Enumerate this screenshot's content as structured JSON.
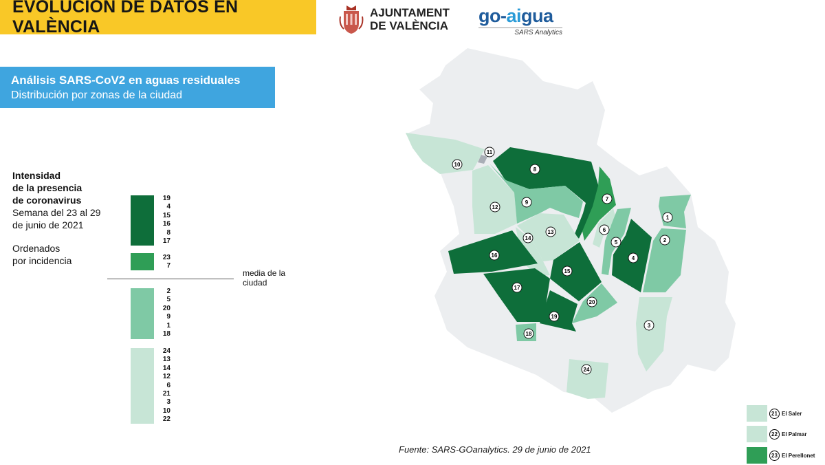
{
  "header": {
    "title": "EVOLUCIÓN DE DATOS EN VALÈNCIA",
    "ajuntament": {
      "line1": "AJUNTAMENT",
      "line2": "DE VALÈNCIA"
    },
    "goaigua": {
      "brand_a": "go-",
      "brand_b": "ai",
      "brand_c": "gua",
      "sub": "SARS Analytics"
    }
  },
  "info_box": {
    "line1": "Análisis SARS-CoV2 en aguas residuales",
    "line2": "Distribución por zonas de la ciudad"
  },
  "legend": {
    "title_lines": [
      "Intensidad",
      "de la presencia",
      "de coronavirus"
    ],
    "week_lines": [
      "Semana del 23 al 29",
      "de junio de 2021"
    ],
    "order_lines": [
      "Ordenados",
      "por incidencia"
    ],
    "mean_label_lines": [
      "media de la",
      "ciudad"
    ],
    "bands": [
      {
        "level": "very-high",
        "color": "#0e6e3a",
        "zones": [
          "19",
          "4",
          "15",
          "16",
          "8",
          "17"
        ]
      },
      {
        "level": "high",
        "color": "#2f9e56",
        "zones": [
          "23",
          "7"
        ]
      },
      {
        "level": "medium",
        "color": "#7fc9a5",
        "zones": [
          "2",
          "5",
          "20",
          "9",
          "1",
          "18"
        ]
      },
      {
        "level": "low",
        "color": "#c7e5d6",
        "zones": [
          "24",
          "13",
          "14",
          "12",
          "6",
          "21",
          "3",
          "10",
          "22"
        ]
      }
    ]
  },
  "zones": [
    {
      "id": "1",
      "level": "medium"
    },
    {
      "id": "2",
      "level": "medium"
    },
    {
      "id": "3",
      "level": "low"
    },
    {
      "id": "4",
      "level": "very-high"
    },
    {
      "id": "5",
      "level": "medium"
    },
    {
      "id": "6",
      "level": "low"
    },
    {
      "id": "7",
      "level": "high"
    },
    {
      "id": "8",
      "level": "very-high"
    },
    {
      "id": "9",
      "level": "medium"
    },
    {
      "id": "10",
      "level": "low"
    },
    {
      "id": "11",
      "level": "no-data"
    },
    {
      "id": "12",
      "level": "low"
    },
    {
      "id": "13",
      "level": "low"
    },
    {
      "id": "14",
      "level": "low"
    },
    {
      "id": "15",
      "level": "very-high"
    },
    {
      "id": "16",
      "level": "very-high"
    },
    {
      "id": "17",
      "level": "very-high"
    },
    {
      "id": "18",
      "level": "medium"
    },
    {
      "id": "19",
      "level": "very-high"
    },
    {
      "id": "20",
      "level": "medium"
    },
    {
      "id": "24",
      "level": "low"
    }
  ],
  "outlying_zones": [
    {
      "id": "21",
      "name": "El Saler",
      "level": "low"
    },
    {
      "id": "22",
      "name": "El Palmar",
      "level": "low"
    },
    {
      "id": "23",
      "name": "El Perellonet",
      "level": "high"
    }
  ],
  "colors": {
    "very-high": "#0e6e3a",
    "high": "#2f9e56",
    "medium": "#7fc9a5",
    "low": "#c7e5d6",
    "no-data": "#a9aeb6",
    "city": "#eceef0",
    "banner": "#f9c827",
    "info": "#3fa5df"
  },
  "source": "Fuente: SARS-GOanalytics. 29 de junio de 2021"
}
